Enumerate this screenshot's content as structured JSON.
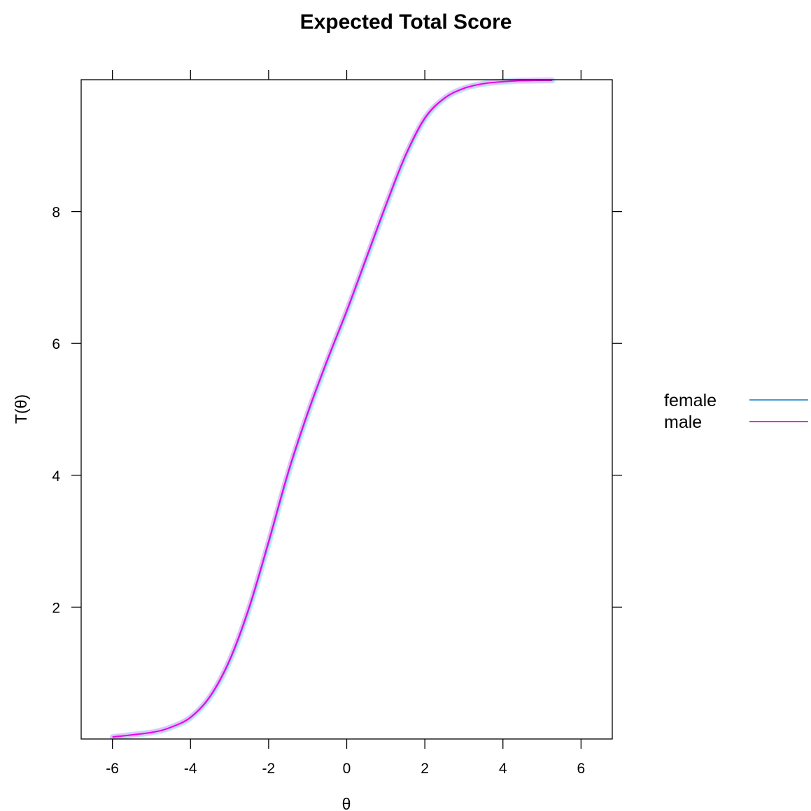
{
  "chart_data": {
    "type": "line",
    "title": "Expected Total Score",
    "xlabel": "θ",
    "ylabel": "T(θ)",
    "xlim": [
      -6.8,
      6.8
    ],
    "ylim": [
      0,
      10
    ],
    "xticks": [
      -6,
      -4,
      -2,
      0,
      2,
      4,
      6
    ],
    "xtick_labels": [
      "-6",
      "-4",
      "-2",
      "0",
      "2",
      "4",
      "6"
    ],
    "yticks": [
      2,
      4,
      6,
      8
    ],
    "ytick_labels": [
      "2",
      "4",
      "6",
      "8"
    ],
    "grid": false,
    "legend_position": "right",
    "series": [
      {
        "name": "female",
        "color": "#2c8fd6",
        "band_color": "#9ff3f6",
        "x": [
          -6,
          -5,
          -4.5,
          -4,
          -3.5,
          -3,
          -2.5,
          -2,
          -1.5,
          -1,
          -0.5,
          0,
          0.5,
          1,
          1.5,
          2,
          2.5,
          3,
          3.5,
          4,
          4.5,
          5,
          5.25
        ],
        "y": [
          0.03,
          0.1,
          0.18,
          0.33,
          0.65,
          1.2,
          2.0,
          3.0,
          4.05,
          4.95,
          5.75,
          6.5,
          7.3,
          8.1,
          8.85,
          9.42,
          9.72,
          9.87,
          9.94,
          9.97,
          9.985,
          9.99,
          9.99
        ]
      },
      {
        "name": "male",
        "color": "#ee00ee",
        "band_color": "#f2b0f2",
        "x": [
          -6,
          -5,
          -4.5,
          -4,
          -3.5,
          -3,
          -2.5,
          -2,
          -1.5,
          -1,
          -0.5,
          0,
          0.5,
          1,
          1.5,
          2,
          2.5,
          3,
          3.5,
          4,
          4.5,
          5,
          5.25
        ],
        "y": [
          0.03,
          0.1,
          0.18,
          0.33,
          0.65,
          1.2,
          2.0,
          3.0,
          4.05,
          4.95,
          5.75,
          6.5,
          7.3,
          8.1,
          8.85,
          9.42,
          9.72,
          9.87,
          9.94,
          9.97,
          9.985,
          9.99,
          9.99
        ]
      }
    ]
  }
}
